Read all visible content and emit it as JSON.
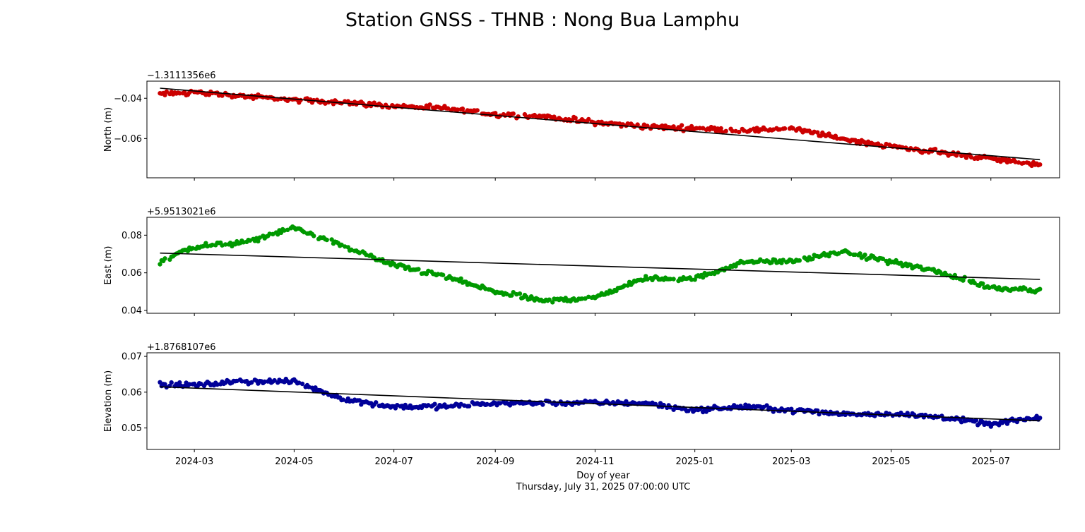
{
  "title": "Station GNSS - THNB : Nong Bua Lamphu",
  "xlabel": "Doy of year",
  "footer": "Thursday, July 31, 2025 07:00:00 UTC",
  "x_tick_labels": [
    "2024-03",
    "2024-05",
    "2024-07",
    "2024-09",
    "2024-11",
    "2025-01",
    "2025-03",
    "2025-05",
    "2025-07"
  ],
  "chart_data": [
    {
      "type": "scatter",
      "ylabel": "North (m)",
      "offset_label": "−1.3111356e6",
      "x_range": [
        "2024-02-01",
        "2025-08-12"
      ],
      "ylim": [
        -0.0795,
        -0.0315
      ],
      "yticks": [
        -0.04,
        -0.06
      ],
      "ytick_labels": [
        "−0.04",
        "−0.06"
      ],
      "color": "#cc0000",
      "trend": {
        "start": {
          "x": "2024-02-09",
          "y": -0.035
        },
        "end": {
          "x": "2025-07-31",
          "y": -0.0705
        }
      },
      "series": [
        {
          "x": "2024-02-09",
          "y": -0.038
        },
        {
          "x": "2024-03-01",
          "y": -0.037
        },
        {
          "x": "2024-04-01",
          "y": -0.039
        },
        {
          "x": "2024-05-01",
          "y": -0.041
        },
        {
          "x": "2024-06-01",
          "y": -0.042
        },
        {
          "x": "2024-07-01",
          "y": -0.044
        },
        {
          "x": "2024-08-01",
          "y": -0.045
        },
        {
          "x": "2024-09-01",
          "y": -0.048
        },
        {
          "x": "2024-10-01",
          "y": -0.049
        },
        {
          "x": "2024-11-01",
          "y": -0.052
        },
        {
          "x": "2024-12-01",
          "y": -0.054
        },
        {
          "x": "2025-01-01",
          "y": -0.055
        },
        {
          "x": "2025-02-01",
          "y": -0.056
        },
        {
          "x": "2025-03-01",
          "y": -0.055
        },
        {
          "x": "2025-04-01",
          "y": -0.06
        },
        {
          "x": "2025-05-01",
          "y": -0.064
        },
        {
          "x": "2025-06-01",
          "y": -0.067
        },
        {
          "x": "2025-07-01",
          "y": -0.07
        },
        {
          "x": "2025-07-31",
          "y": -0.073
        }
      ]
    },
    {
      "type": "scatter",
      "ylabel": "East (m)",
      "offset_label": "+5.9513021e6",
      "x_range": [
        "2024-02-01",
        "2025-08-12"
      ],
      "ylim": [
        0.0385,
        0.0895
      ],
      "yticks": [
        0.04,
        0.06,
        0.08
      ],
      "ytick_labels": [
        "0.04",
        "0.06",
        "0.08"
      ],
      "color": "#009900",
      "trend": {
        "start": {
          "x": "2024-02-09",
          "y": 0.0705
        },
        "end": {
          "x": "2025-07-31",
          "y": 0.0565
        }
      },
      "series": [
        {
          "x": "2024-02-09",
          "y": 0.066
        },
        {
          "x": "2024-03-01",
          "y": 0.074
        },
        {
          "x": "2024-04-01",
          "y": 0.076
        },
        {
          "x": "2024-05-01",
          "y": 0.084
        },
        {
          "x": "2024-06-01",
          "y": 0.074
        },
        {
          "x": "2024-07-01",
          "y": 0.064
        },
        {
          "x": "2024-08-01",
          "y": 0.058
        },
        {
          "x": "2024-09-01",
          "y": 0.05
        },
        {
          "x": "2024-10-01",
          "y": 0.045
        },
        {
          "x": "2024-11-01",
          "y": 0.047
        },
        {
          "x": "2024-12-01",
          "y": 0.057
        },
        {
          "x": "2025-01-01",
          "y": 0.057
        },
        {
          "x": "2025-02-01",
          "y": 0.066
        },
        {
          "x": "2025-03-01",
          "y": 0.066
        },
        {
          "x": "2025-04-01",
          "y": 0.071
        },
        {
          "x": "2025-05-01",
          "y": 0.066
        },
        {
          "x": "2025-06-01",
          "y": 0.06
        },
        {
          "x": "2025-07-01",
          "y": 0.052
        },
        {
          "x": "2025-07-31",
          "y": 0.051
        }
      ]
    },
    {
      "type": "scatter",
      "ylabel": "Elevation (m)",
      "offset_label": "+1.8768107e6",
      "x_range": [
        "2024-02-01",
        "2025-08-12"
      ],
      "ylim": [
        0.044,
        0.071
      ],
      "yticks": [
        0.05,
        0.06,
        0.07
      ],
      "ytick_labels": [
        "0.05",
        "0.06",
        "0.07"
      ],
      "color": "#000099",
      "trend": {
        "start": {
          "x": "2024-02-09",
          "y": 0.0615
        },
        "end": {
          "x": "2025-07-31",
          "y": 0.052
        }
      },
      "series": [
        {
          "x": "2024-02-09",
          "y": 0.062
        },
        {
          "x": "2024-03-01",
          "y": 0.062
        },
        {
          "x": "2024-04-01",
          "y": 0.063
        },
        {
          "x": "2024-05-01",
          "y": 0.063
        },
        {
          "x": "2024-06-01",
          "y": 0.058
        },
        {
          "x": "2024-07-01",
          "y": 0.056
        },
        {
          "x": "2024-08-01",
          "y": 0.056
        },
        {
          "x": "2024-09-01",
          "y": 0.057
        },
        {
          "x": "2024-10-01",
          "y": 0.057
        },
        {
          "x": "2024-11-01",
          "y": 0.057
        },
        {
          "x": "2024-12-01",
          "y": 0.057
        },
        {
          "x": "2025-01-01",
          "y": 0.055
        },
        {
          "x": "2025-02-01",
          "y": 0.056
        },
        {
          "x": "2025-03-01",
          "y": 0.055
        },
        {
          "x": "2025-04-01",
          "y": 0.054
        },
        {
          "x": "2025-05-01",
          "y": 0.054
        },
        {
          "x": "2025-06-01",
          "y": 0.053
        },
        {
          "x": "2025-07-01",
          "y": 0.051
        },
        {
          "x": "2025-07-31",
          "y": 0.053
        }
      ]
    }
  ]
}
